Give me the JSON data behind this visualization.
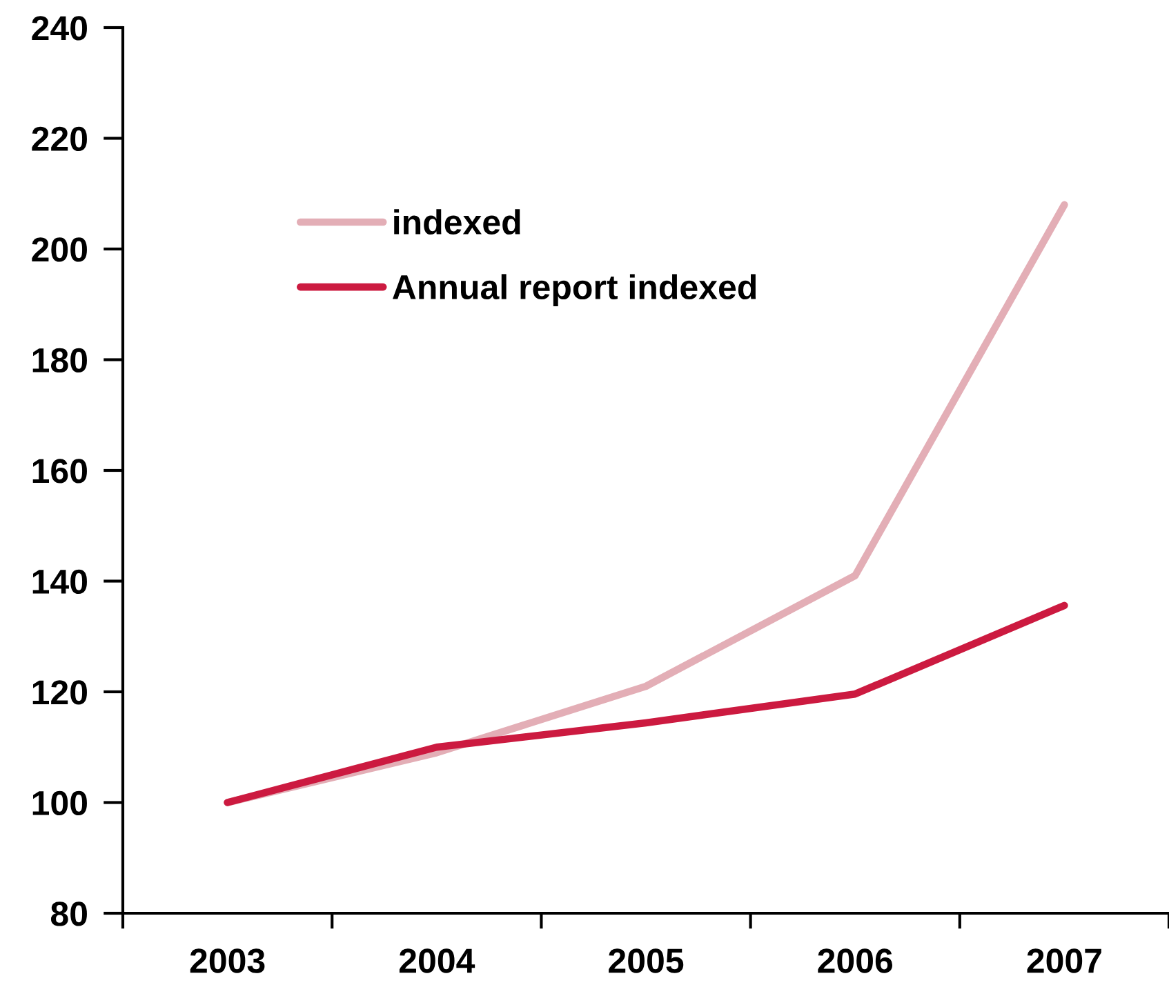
{
  "chart_data": {
    "type": "line",
    "categories": [
      "2003",
      "2004",
      "2005",
      "2006",
      "2007"
    ],
    "series": [
      {
        "name": "indexed",
        "color": "#e3aeb6",
        "values": [
          100,
          109,
          121,
          141,
          208
        ]
      },
      {
        "name": "Annual report indexed",
        "color": "#cc1a40",
        "values": [
          100,
          110,
          114.4,
          119.6,
          135.6
        ]
      }
    ],
    "ylim": [
      80,
      240
    ],
    "yticks": [
      80,
      100,
      120,
      140,
      160,
      180,
      200,
      220,
      240
    ],
    "grid": false,
    "legend": "top left",
    "marker": "none",
    "line_style": "solid"
  }
}
